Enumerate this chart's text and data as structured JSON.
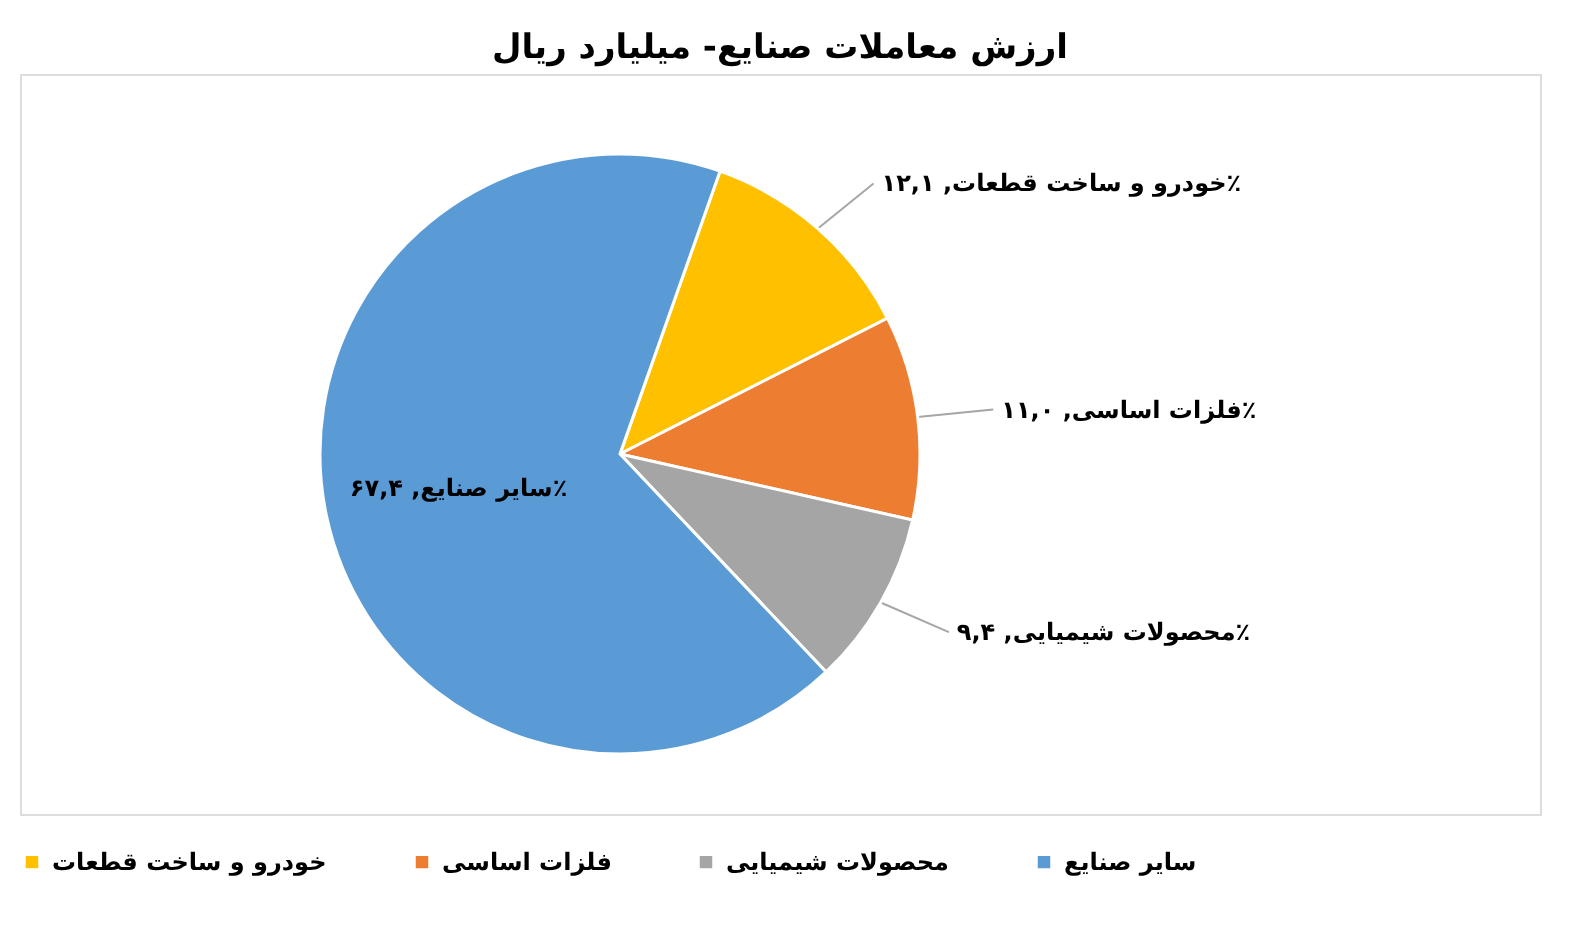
{
  "chart_data": {
    "type": "pie",
    "title": "ارزش معاملات صنایع- میلیارد ریال",
    "categories": [
      "خودرو و ساخت قطعات",
      "فلزات اساسی",
      "محصولات شیمیایی",
      "سایر صنایع"
    ],
    "values": [
      12.1,
      11.0,
      9.4,
      67.4
    ],
    "colors": [
      "#ffc000",
      "#ed7d31",
      "#a5a5a5",
      "#5b9bd5"
    ],
    "value_labels": [
      "خودرو و ساخت قطعات, ۱۲,۱٪",
      "فلزات اساسی, ۱۱,۰٪",
      "محصولات شیمیایی, ۹,۴٪",
      "سایر صنایع, ۶۷,۴٪"
    ],
    "legend": "bottom"
  }
}
